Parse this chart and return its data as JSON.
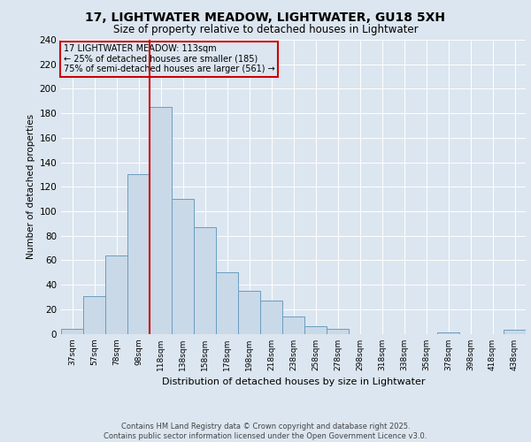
{
  "title_line1": "17, LIGHTWATER MEADOW, LIGHTWATER, GU18 5XH",
  "title_line2": "Size of property relative to detached houses in Lightwater",
  "xlabel": "Distribution of detached houses by size in Lightwater",
  "ylabel": "Number of detached properties",
  "footer_line1": "Contains HM Land Registry data © Crown copyright and database right 2025.",
  "footer_line2": "Contains public sector information licensed under the Open Government Licence v3.0.",
  "annotation_line1": "17 LIGHTWATER MEADOW: 113sqm",
  "annotation_line2": "← 25% of detached houses are smaller (185)",
  "annotation_line3": "75% of semi-detached houses are larger (561) →",
  "bar_labels": [
    "37sqm",
    "57sqm",
    "78sqm",
    "98sqm",
    "118sqm",
    "138sqm",
    "158sqm",
    "178sqm",
    "198sqm",
    "218sqm",
    "238sqm",
    "258sqm",
    "278sqm",
    "298sqm",
    "318sqm",
    "338sqm",
    "358sqm",
    "378sqm",
    "398sqm",
    "418sqm",
    "438sqm"
  ],
  "bar_values": [
    4,
    31,
    64,
    130,
    185,
    110,
    87,
    50,
    35,
    27,
    14,
    6,
    4,
    0,
    0,
    0,
    0,
    1,
    0,
    0,
    3
  ],
  "bar_color": "#c9d9e8",
  "bar_edge_color": "#6a9dc0",
  "red_line_index": 4,
  "vline_color": "#cc0000",
  "background_color": "#dce6f0",
  "plot_bg_color": "#dce6f0",
  "ylim": [
    0,
    240
  ],
  "yticks": [
    0,
    20,
    40,
    60,
    80,
    100,
    120,
    140,
    160,
    180,
    200,
    220,
    240
  ],
  "annotation_box_edge_color": "#cc0000",
  "grid_color": "#ffffff"
}
